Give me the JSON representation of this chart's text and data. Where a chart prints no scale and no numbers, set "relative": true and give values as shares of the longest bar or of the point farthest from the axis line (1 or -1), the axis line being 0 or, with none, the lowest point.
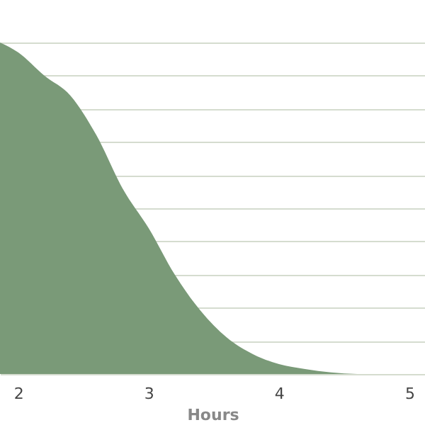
{
  "chart_data": {
    "type": "area",
    "xlabel": "Hours",
    "relative": true,
    "grid": "y",
    "x": [
      1.86,
      2.0,
      2.2,
      2.4,
      2.6,
      2.8,
      3.0,
      3.2,
      3.4,
      3.6,
      3.8,
      4.0,
      4.2,
      4.4,
      4.6
    ],
    "series": [
      {
        "color": "#7a9a78",
        "values": [
          1.0,
          0.97,
          0.9,
          0.84,
          0.72,
          0.56,
          0.44,
          0.3,
          0.19,
          0.11,
          0.06,
          0.03,
          0.015,
          0.005,
          0
        ]
      }
    ],
    "xlim": [
      1.86,
      5.12
    ],
    "xticks": [
      2,
      3,
      4,
      5
    ]
  }
}
